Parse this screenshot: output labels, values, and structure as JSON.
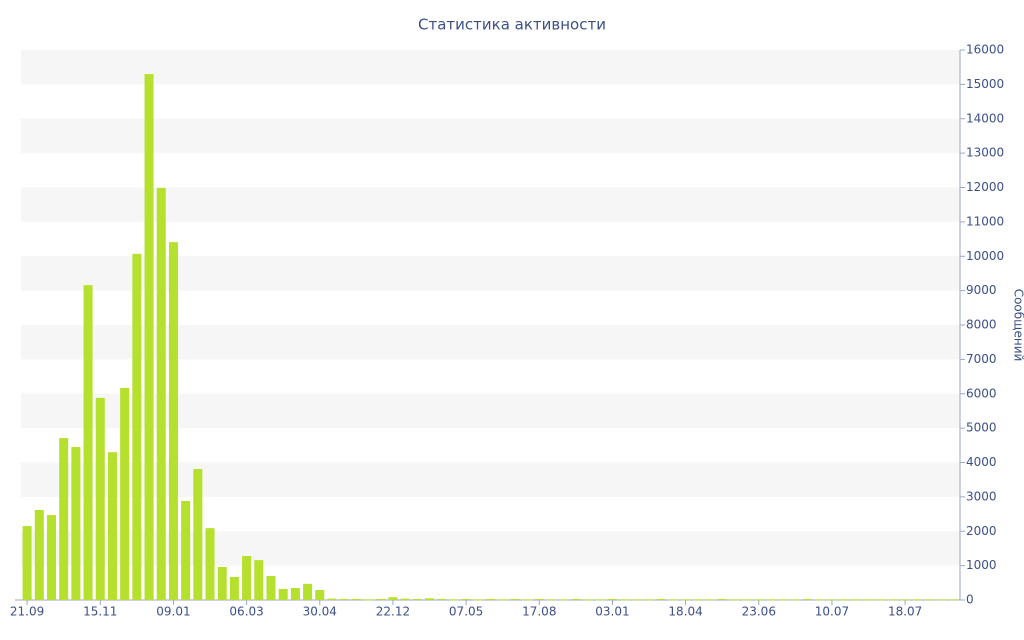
{
  "chart_data": {
    "type": "bar",
    "title": "Статистика активности",
    "y_axis_label": "Сообщений",
    "categories": [
      "21.09",
      null,
      null,
      null,
      null,
      null,
      "15.11",
      null,
      null,
      null,
      null,
      null,
      "09.01",
      null,
      null,
      null,
      null,
      null,
      "06.03",
      null,
      null,
      null,
      null,
      null,
      "30.04",
      null,
      null,
      null,
      null,
      null,
      "22.12",
      null,
      null,
      null,
      null,
      null,
      "07.05",
      null,
      null,
      null,
      null,
      null,
      "17.08",
      null,
      null,
      null,
      null,
      null,
      "03.01",
      null,
      null,
      null,
      null,
      null,
      "18.04",
      null,
      null,
      null,
      null,
      null,
      "23.06",
      null,
      null,
      null,
      null,
      null,
      "10.07",
      null,
      null,
      null,
      null,
      null,
      "18.07",
      null,
      null,
      null,
      null
    ],
    "values": [
      2150,
      2620,
      2470,
      4710,
      4450,
      9160,
      5880,
      4300,
      6170,
      10070,
      15300,
      11990,
      10410,
      2880,
      3810,
      2090,
      960,
      670,
      1280,
      1160,
      700,
      320,
      350,
      470,
      290,
      40,
      30,
      30,
      20,
      30,
      80,
      40,
      30,
      50,
      30,
      20,
      30,
      20,
      30,
      20,
      30,
      20,
      30,
      20,
      20,
      30,
      20,
      20,
      30,
      20,
      20,
      20,
      30,
      20,
      20,
      20,
      20,
      30,
      20,
      20,
      20,
      20,
      20,
      20,
      30,
      20,
      20,
      20,
      20,
      20,
      20,
      20,
      20,
      20,
      20,
      20,
      20
    ],
    "color": "#b5e02e",
    "ylim": [
      0,
      16000
    ],
    "yticks": [
      0,
      1000,
      2000,
      3000,
      4000,
      5000,
      6000,
      7000,
      8000,
      9000,
      10000,
      11000,
      12000,
      13000,
      14000,
      15000,
      16000
    ],
    "grid": true,
    "y_axis_side": "right"
  }
}
